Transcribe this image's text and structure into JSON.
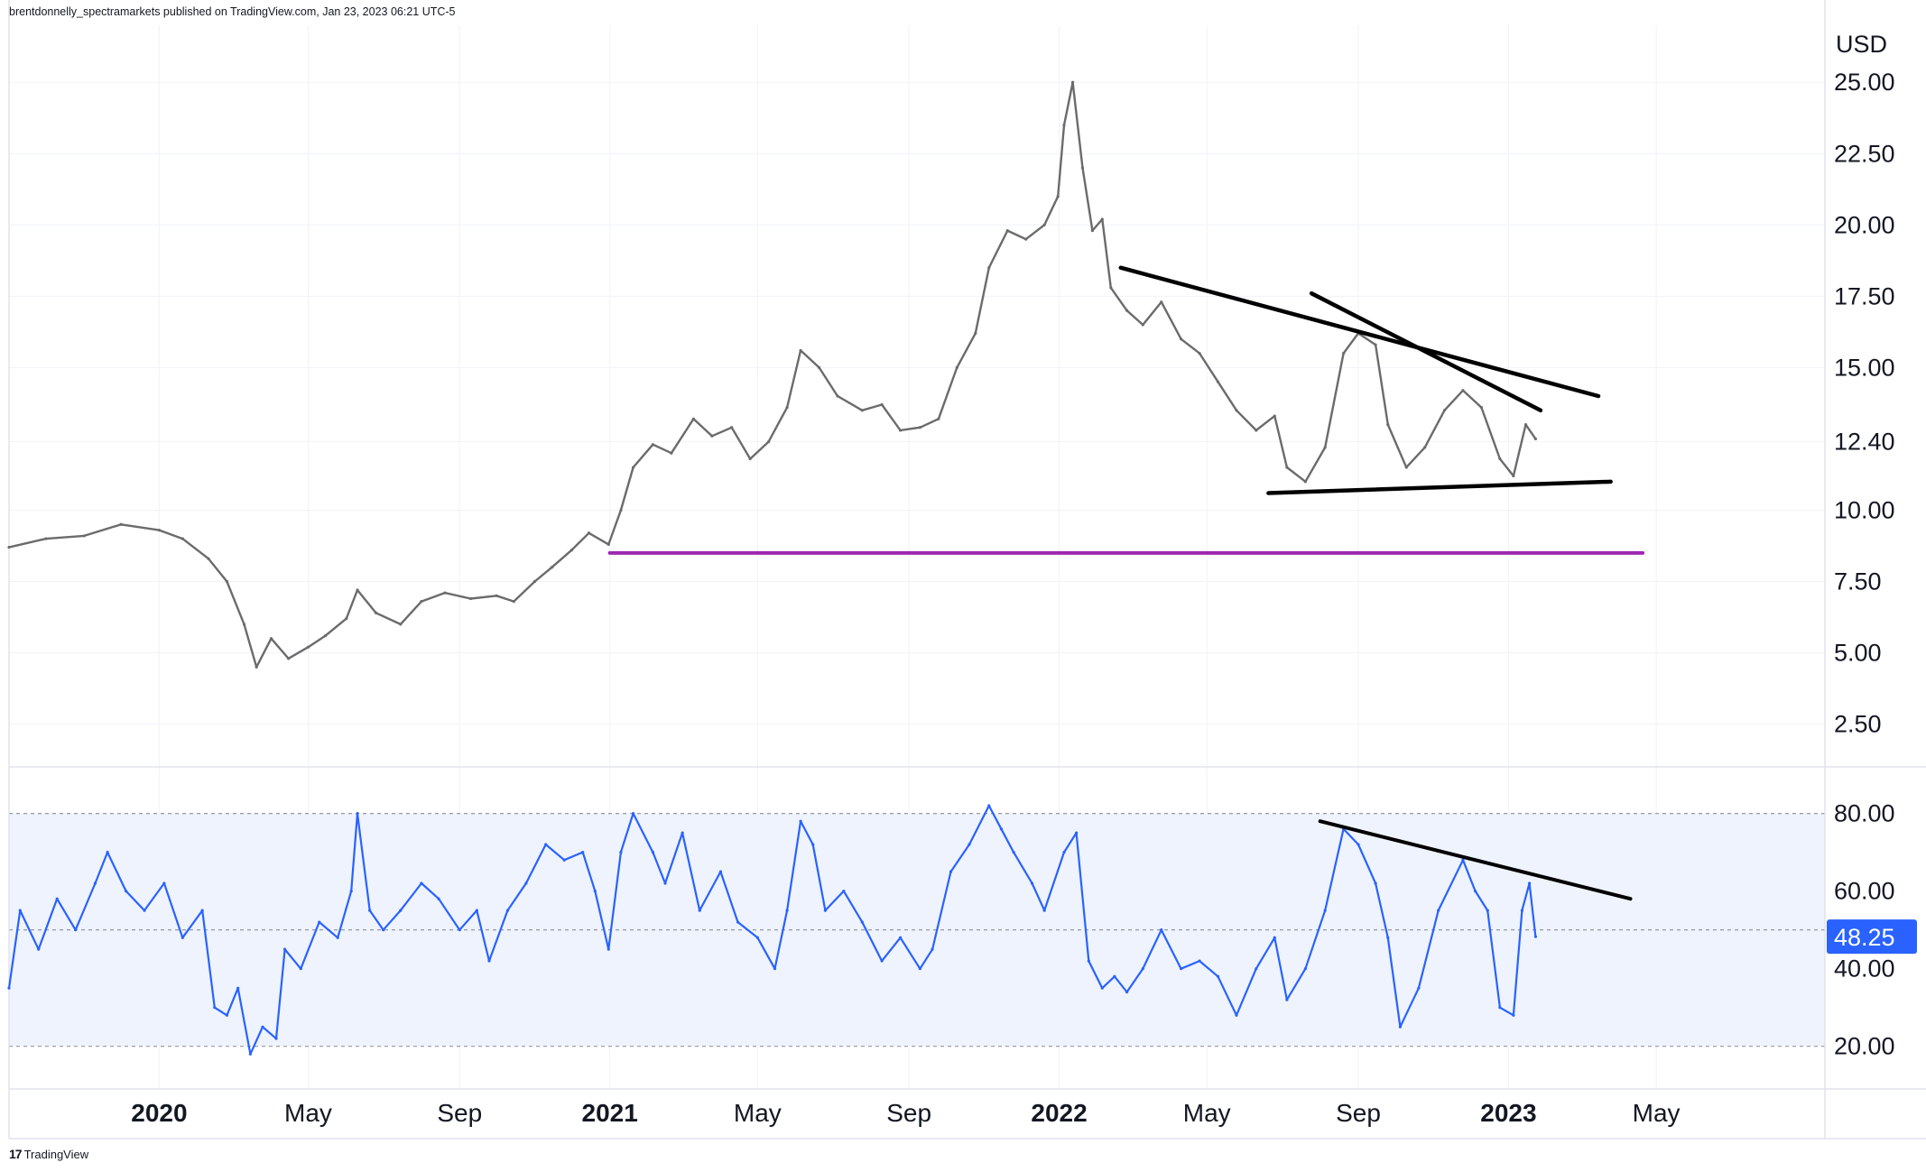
{
  "header": {
    "publisher_text": "brentdonnelly_spectramarkets published on TradingView.com, Jan 23, 2023 06:21 UTC-5"
  },
  "logo": {
    "mark": "17",
    "label": "TradingView"
  },
  "colors": {
    "price_bars": "#6b6b6b",
    "rsi_line": "#2962ff",
    "rsi_band_fill": "#eef3fd",
    "support_line": "#9c27b0",
    "trend_lines": "#000000",
    "grid": "#f0f3fa",
    "badge_bg": "#2962ff",
    "badge_text": "#ffffff"
  },
  "chart_data": [
    {
      "type": "line",
      "name": "price",
      "currency_label": "USD",
      "y_ticks": [
        "2.50",
        "5.00",
        "7.50",
        "10.00",
        "12.40",
        "15.00",
        "17.50",
        "20.00",
        "22.50",
        "25.00"
      ],
      "ylim": [
        1.0,
        27.0
      ],
      "x_ticks": [
        {
          "label": "2020",
          "date": "2020-01-01",
          "bold": true
        },
        {
          "label": "May",
          "date": "2020-05-01",
          "bold": false
        },
        {
          "label": "Sep",
          "date": "2020-09-01",
          "bold": false
        },
        {
          "label": "2021",
          "date": "2021-01-01",
          "bold": true
        },
        {
          "label": "May",
          "date": "2021-05-01",
          "bold": false
        },
        {
          "label": "Sep",
          "date": "2021-09-01",
          "bold": false
        },
        {
          "label": "2022",
          "date": "2022-01-01",
          "bold": true
        },
        {
          "label": "May",
          "date": "2022-05-01",
          "bold": false
        },
        {
          "label": "Sep",
          "date": "2022-09-01",
          "bold": false
        },
        {
          "label": "2023",
          "date": "2023-01-01",
          "bold": true
        },
        {
          "label": "May",
          "date": "2023-05-01",
          "bold": false
        }
      ],
      "series": [
        {
          "points": [
            [
              "2019-09-01",
              8.7
            ],
            [
              "2019-10-01",
              9.0
            ],
            [
              "2019-11-01",
              9.1
            ],
            [
              "2019-12-01",
              9.5
            ],
            [
              "2020-01-01",
              9.3
            ],
            [
              "2020-01-20",
              9.0
            ],
            [
              "2020-02-10",
              8.3
            ],
            [
              "2020-02-25",
              7.5
            ],
            [
              "2020-03-10",
              6.0
            ],
            [
              "2020-03-20",
              4.5
            ],
            [
              "2020-04-01",
              5.5
            ],
            [
              "2020-04-15",
              4.8
            ],
            [
              "2020-05-01",
              5.2
            ],
            [
              "2020-05-15",
              5.6
            ],
            [
              "2020-06-01",
              6.2
            ],
            [
              "2020-06-10",
              7.2
            ],
            [
              "2020-06-25",
              6.4
            ],
            [
              "2020-07-15",
              6.0
            ],
            [
              "2020-08-01",
              6.8
            ],
            [
              "2020-08-20",
              7.1
            ],
            [
              "2020-09-10",
              6.9
            ],
            [
              "2020-10-01",
              7.0
            ],
            [
              "2020-10-15",
              6.8
            ],
            [
              "2020-11-01",
              7.5
            ],
            [
              "2020-11-15",
              8.0
            ],
            [
              "2020-12-01",
              8.6
            ],
            [
              "2020-12-15",
              9.2
            ],
            [
              "2020-12-31",
              8.8
            ],
            [
              "2021-01-10",
              10.0
            ],
            [
              "2021-01-20",
              11.5
            ],
            [
              "2021-02-05",
              12.3
            ],
            [
              "2021-02-20",
              12.0
            ],
            [
              "2021-03-10",
              13.2
            ],
            [
              "2021-03-25",
              12.6
            ],
            [
              "2021-04-10",
              12.9
            ],
            [
              "2021-04-25",
              11.8
            ],
            [
              "2021-05-10",
              12.4
            ],
            [
              "2021-05-25",
              13.6
            ],
            [
              "2021-06-05",
              15.6
            ],
            [
              "2021-06-20",
              15.0
            ],
            [
              "2021-07-05",
              14.0
            ],
            [
              "2021-07-25",
              13.5
            ],
            [
              "2021-08-10",
              13.7
            ],
            [
              "2021-08-25",
              12.8
            ],
            [
              "2021-09-10",
              12.9
            ],
            [
              "2021-09-25",
              13.2
            ],
            [
              "2021-10-10",
              15.0
            ],
            [
              "2021-10-25",
              16.2
            ],
            [
              "2021-11-05",
              18.5
            ],
            [
              "2021-11-20",
              19.8
            ],
            [
              "2021-12-05",
              19.5
            ],
            [
              "2021-12-20",
              20.0
            ],
            [
              "2021-12-31",
              21.0
            ],
            [
              "2022-01-05",
              23.5
            ],
            [
              "2022-01-12",
              25.0
            ],
            [
              "2022-01-20",
              22.0
            ],
            [
              "2022-01-28",
              19.8
            ],
            [
              "2022-02-05",
              20.2
            ],
            [
              "2022-02-12",
              17.8
            ],
            [
              "2022-02-25",
              17.0
            ],
            [
              "2022-03-10",
              16.5
            ],
            [
              "2022-03-25",
              17.3
            ],
            [
              "2022-04-10",
              16.0
            ],
            [
              "2022-04-25",
              15.5
            ],
            [
              "2022-05-10",
              14.5
            ],
            [
              "2022-05-25",
              13.5
            ],
            [
              "2022-06-10",
              12.8
            ],
            [
              "2022-06-25",
              13.3
            ],
            [
              "2022-07-05",
              11.5
            ],
            [
              "2022-07-20",
              11.0
            ],
            [
              "2022-08-05",
              12.2
            ],
            [
              "2022-08-20",
              15.5
            ],
            [
              "2022-09-01",
              16.2
            ],
            [
              "2022-09-15",
              15.8
            ],
            [
              "2022-09-25",
              13.0
            ],
            [
              "2022-10-10",
              11.5
            ],
            [
              "2022-10-25",
              12.2
            ],
            [
              "2022-11-10",
              13.5
            ],
            [
              "2022-11-25",
              14.2
            ],
            [
              "2022-12-10",
              13.6
            ],
            [
              "2022-12-25",
              11.8
            ],
            [
              "2023-01-05",
              11.2
            ],
            [
              "2023-01-15",
              13.0
            ],
            [
              "2023-01-23",
              12.5
            ]
          ]
        }
      ],
      "annotations": [
        {
          "name": "support-line",
          "color": "#9c27b0",
          "from": [
            "2021-01-01",
            8.5
          ],
          "to": [
            "2023-04-20",
            8.5
          ]
        },
        {
          "name": "trendline-upper",
          "color": "#000000",
          "from": [
            "2022-02-20",
            18.5
          ],
          "to": [
            "2023-03-15",
            14.0
          ]
        },
        {
          "name": "trendline-steep",
          "color": "#000000",
          "from": [
            "2022-07-25",
            17.6
          ],
          "to": [
            "2023-01-27",
            13.5
          ]
        },
        {
          "name": "trendline-base",
          "color": "#000000",
          "from": [
            "2022-06-20",
            10.6
          ],
          "to": [
            "2023-03-25",
            11.0
          ]
        }
      ]
    },
    {
      "type": "line",
      "name": "RSI",
      "y_ticks": [
        "20.00",
        "40.00",
        "60.00",
        "80.00"
      ],
      "ylim": [
        9.0,
        92.0
      ],
      "band": [
        20,
        80
      ],
      "midline": 50,
      "last_value": "48.25",
      "series": [
        {
          "points": [
            [
              "2019-09-01",
              35
            ],
            [
              "2019-09-10",
              55
            ],
            [
              "2019-09-25",
              45
            ],
            [
              "2019-10-10",
              58
            ],
            [
              "2019-10-25",
              50
            ],
            [
              "2019-11-10",
              62
            ],
            [
              "2019-11-20",
              70
            ],
            [
              "2019-12-05",
              60
            ],
            [
              "2019-12-20",
              55
            ],
            [
              "2020-01-05",
              62
            ],
            [
              "2020-01-20",
              48
            ],
            [
              "2020-02-05",
              55
            ],
            [
              "2020-02-15",
              30
            ],
            [
              "2020-02-25",
              28
            ],
            [
              "2020-03-05",
              35
            ],
            [
              "2020-03-15",
              18
            ],
            [
              "2020-03-25",
              25
            ],
            [
              "2020-04-05",
              22
            ],
            [
              "2020-04-12",
              45
            ],
            [
              "2020-04-25",
              40
            ],
            [
              "2020-05-10",
              52
            ],
            [
              "2020-05-25",
              48
            ],
            [
              "2020-06-05",
              60
            ],
            [
              "2020-06-10",
              80
            ],
            [
              "2020-06-20",
              55
            ],
            [
              "2020-07-01",
              50
            ],
            [
              "2020-07-15",
              55
            ],
            [
              "2020-08-01",
              62
            ],
            [
              "2020-08-15",
              58
            ],
            [
              "2020-09-01",
              50
            ],
            [
              "2020-09-15",
              55
            ],
            [
              "2020-09-25",
              42
            ],
            [
              "2020-10-10",
              55
            ],
            [
              "2020-10-25",
              62
            ],
            [
              "2020-11-10",
              72
            ],
            [
              "2020-11-25",
              68
            ],
            [
              "2020-12-10",
              70
            ],
            [
              "2020-12-20",
              60
            ],
            [
              "2020-12-31",
              45
            ],
            [
              "2021-01-10",
              70
            ],
            [
              "2021-01-20",
              80
            ],
            [
              "2021-02-05",
              70
            ],
            [
              "2021-02-15",
              62
            ],
            [
              "2021-03-01",
              75
            ],
            [
              "2021-03-15",
              55
            ],
            [
              "2021-04-01",
              65
            ],
            [
              "2021-04-15",
              52
            ],
            [
              "2021-05-01",
              48
            ],
            [
              "2021-05-15",
              40
            ],
            [
              "2021-05-25",
              55
            ],
            [
              "2021-06-05",
              78
            ],
            [
              "2021-06-15",
              72
            ],
            [
              "2021-06-25",
              55
            ],
            [
              "2021-07-10",
              60
            ],
            [
              "2021-07-25",
              52
            ],
            [
              "2021-08-10",
              42
            ],
            [
              "2021-08-25",
              48
            ],
            [
              "2021-09-10",
              40
            ],
            [
              "2021-09-20",
              45
            ],
            [
              "2021-10-05",
              65
            ],
            [
              "2021-10-20",
              72
            ],
            [
              "2021-11-05",
              82
            ],
            [
              "2021-11-15",
              76
            ],
            [
              "2021-11-25",
              70
            ],
            [
              "2021-12-10",
              62
            ],
            [
              "2021-12-20",
              55
            ],
            [
              "2022-01-05",
              70
            ],
            [
              "2022-01-15",
              75
            ],
            [
              "2022-01-25",
              42
            ],
            [
              "2022-02-05",
              35
            ],
            [
              "2022-02-15",
              38
            ],
            [
              "2022-02-25",
              34
            ],
            [
              "2022-03-10",
              40
            ],
            [
              "2022-03-25",
              50
            ],
            [
              "2022-04-10",
              40
            ],
            [
              "2022-04-25",
              42
            ],
            [
              "2022-05-10",
              38
            ],
            [
              "2022-05-25",
              28
            ],
            [
              "2022-06-10",
              40
            ],
            [
              "2022-06-25",
              48
            ],
            [
              "2022-07-05",
              32
            ],
            [
              "2022-07-20",
              40
            ],
            [
              "2022-08-05",
              55
            ],
            [
              "2022-08-20",
              76
            ],
            [
              "2022-09-01",
              72
            ],
            [
              "2022-09-15",
              62
            ],
            [
              "2022-09-25",
              48
            ],
            [
              "2022-10-05",
              25
            ],
            [
              "2022-10-20",
              35
            ],
            [
              "2022-11-05",
              55
            ],
            [
              "2022-11-25",
              68
            ],
            [
              "2022-12-05",
              60
            ],
            [
              "2022-12-15",
              55
            ],
            [
              "2022-12-25",
              30
            ],
            [
              "2023-01-05",
              28
            ],
            [
              "2023-01-12",
              55
            ],
            [
              "2023-01-18",
              62
            ],
            [
              "2023-01-23",
              48.25
            ]
          ]
        }
      ],
      "annotations": [
        {
          "name": "rsi-trendline",
          "color": "#000000",
          "from": [
            "2022-08-01",
            78
          ],
          "to": [
            "2023-04-10",
            58
          ]
        }
      ]
    }
  ]
}
